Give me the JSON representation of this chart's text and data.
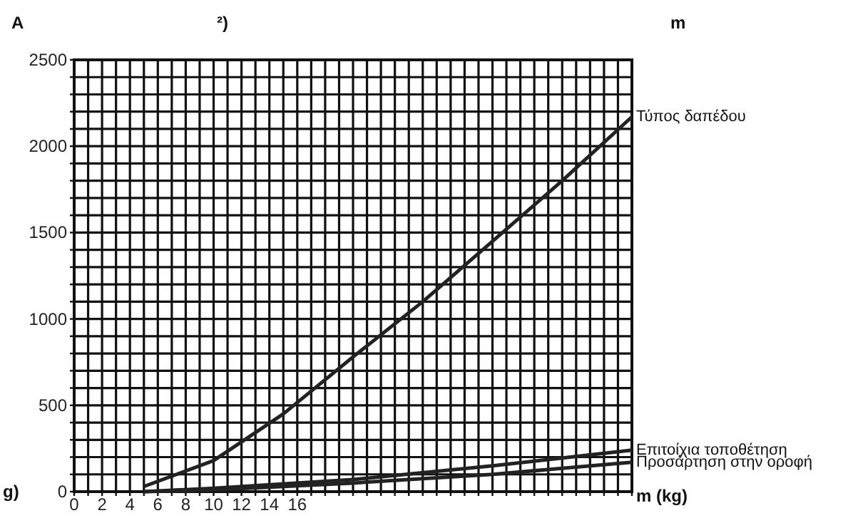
{
  "chart_data": {
    "type": "line",
    "xlabel": "m (kg)",
    "annotations": [
      "A",
      "²)",
      "m",
      "g)"
    ],
    "xlim": [
      0,
      40
    ],
    "ylim": [
      0,
      2500
    ],
    "xticks": [
      0,
      {
        "value": 1,
        "label": null
      },
      2,
      {
        "value": 3,
        "label": null
      },
      4,
      {
        "value": 5,
        "label": null
      },
      6,
      {
        "value": 7,
        "label": null
      },
      8,
      {
        "value": 9,
        "label": null
      },
      10,
      {
        "value": 11,
        "label": null
      },
      12,
      {
        "value": 13,
        "label": null
      },
      14,
      {
        "value": 15,
        "label": null
      },
      16,
      {
        "value": 17,
        "label": null
      },
      {
        "value": 18,
        "label": null
      },
      {
        "value": 19,
        "label": null
      },
      {
        "value": 20,
        "label": null
      },
      {
        "value": 21,
        "label": null
      },
      {
        "value": 22,
        "label": null
      },
      {
        "value": 23,
        "label": null
      },
      {
        "value": 24,
        "label": null
      },
      {
        "value": 25,
        "label": null
      },
      {
        "value": 26,
        "label": null
      },
      {
        "value": 27,
        "label": null
      },
      {
        "value": 28,
        "label": null
      },
      {
        "value": 29,
        "label": null
      },
      {
        "value": 30,
        "label": null
      },
      {
        "value": 31,
        "label": null
      },
      {
        "value": 32,
        "label": null
      },
      {
        "value": 33,
        "label": null
      },
      {
        "value": 34,
        "label": null
      },
      {
        "value": 35,
        "label": null
      },
      {
        "value": 36,
        "label": null
      },
      {
        "value": 37,
        "label": null
      },
      {
        "value": 38,
        "label": null
      },
      {
        "value": 39,
        "label": null
      },
      {
        "value": 40,
        "label": null
      }
    ],
    "yticks": [
      0,
      {
        "value": 100,
        "label": null
      },
      {
        "value": 200,
        "label": null
      },
      {
        "value": 300,
        "label": null
      },
      {
        "value": 400,
        "label": null
      },
      500,
      {
        "value": 600,
        "label": null
      },
      {
        "value": 700,
        "label": null
      },
      {
        "value": 800,
        "label": null
      },
      {
        "value": 900,
        "label": null
      },
      1000,
      {
        "value": 1100,
        "label": null
      },
      {
        "value": 1200,
        "label": null
      },
      {
        "value": 1300,
        "label": null
      },
      {
        "value": 1400,
        "label": null
      },
      1500,
      {
        "value": 1600,
        "label": null
      },
      {
        "value": 1700,
        "label": null
      },
      {
        "value": 1800,
        "label": null
      },
      {
        "value": 1900,
        "label": null
      },
      2000,
      {
        "value": 2100,
        "label": null
      },
      {
        "value": 2200,
        "label": null
      },
      {
        "value": 2300,
        "label": null
      },
      {
        "value": 2400,
        "label": null
      },
      2500
    ],
    "grid": true,
    "marker": "none",
    "line_style": "solid",
    "series": [
      {
        "name": "Τύπος δαπέδου",
        "color": "#222222",
        "x": [
          5,
          10,
          15,
          20,
          25,
          30,
          35,
          40
        ],
        "values": [
          30,
          180,
          450,
          780,
          1100,
          1450,
          1800,
          2170
        ]
      },
      {
        "name": "Επιτοίχια τοποθέτηση",
        "color": "#222222",
        "x": [
          5,
          10,
          20,
          30,
          40
        ],
        "values": [
          0,
          20,
          70,
          150,
          240
        ]
      },
      {
        "name": "Προσάρτηση στην οροφή",
        "color": "#222222",
        "x": [
          5,
          10,
          20,
          30,
          40
        ],
        "values": [
          0,
          10,
          50,
          100,
          170
        ]
      }
    ]
  }
}
